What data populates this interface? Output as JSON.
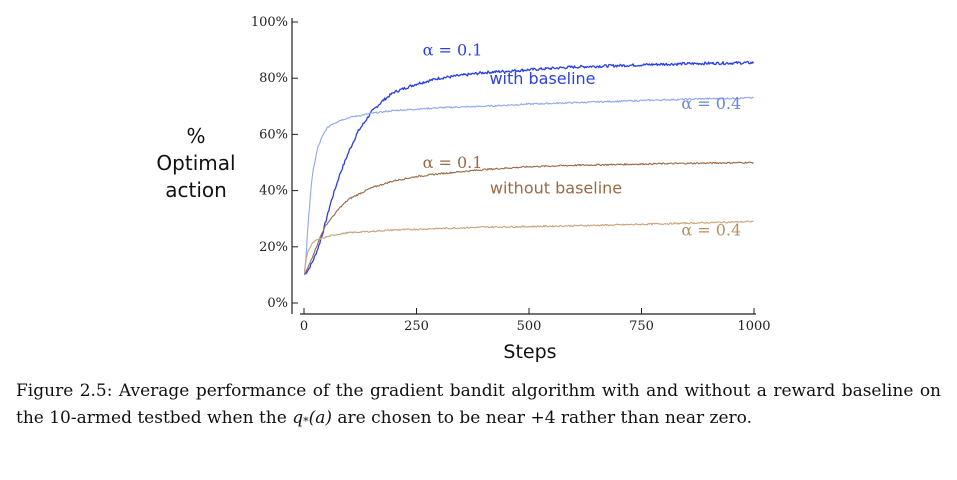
{
  "chart_data": {
    "type": "line",
    "title": "",
    "xlabel": "Steps",
    "ylabel": [
      "%",
      "Optimal",
      "action"
    ],
    "xlim": [
      0,
      1000
    ],
    "ylim": [
      0,
      100
    ],
    "xticks": [
      0,
      250,
      500,
      750,
      1000
    ],
    "yticks": [
      0,
      20,
      40,
      60,
      80,
      100
    ],
    "xtick_labels": [
      "0",
      "250",
      "500",
      "750",
      "1000"
    ],
    "ytick_labels": [
      "0%",
      "20%",
      "40%",
      "60%",
      "80%",
      "100%"
    ],
    "grid": false,
    "series": [
      {
        "label": "α = 0.1",
        "group": "with baseline",
        "color": "#2a3fe6",
        "x": [
          1,
          10,
          20,
          30,
          40,
          50,
          60,
          80,
          100,
          120,
          150,
          175,
          200,
          250,
          300,
          400,
          500,
          600,
          700,
          800,
          900,
          1000
        ],
        "y": [
          10,
          12,
          15,
          19,
          24,
          30,
          36,
          46,
          54,
          61,
          68,
          72,
          75,
          78,
          80,
          82,
          83,
          84,
          84.5,
          85,
          85.3,
          85.5
        ]
      },
      {
        "label": "α = 0.4",
        "group": "with baseline",
        "color": "#8fa8ee",
        "x": [
          1,
          5,
          10,
          15,
          20,
          30,
          40,
          50,
          60,
          80,
          100,
          150,
          200,
          250,
          300,
          400,
          500,
          600,
          700,
          800,
          900,
          1000
        ],
        "y": [
          10,
          18,
          30,
          40,
          47,
          55,
          59,
          62,
          63.5,
          65,
          66,
          67.5,
          68.5,
          69,
          69.5,
          70,
          70.8,
          71.3,
          71.8,
          72.3,
          72.7,
          73
        ]
      },
      {
        "label": "α = 0.1",
        "group": "without baseline",
        "color": "#9a6a46",
        "x": [
          1,
          10,
          20,
          30,
          40,
          50,
          60,
          80,
          100,
          125,
          150,
          200,
          250,
          300,
          400,
          500,
          600,
          700,
          800,
          900,
          1000
        ],
        "y": [
          10,
          13,
          17,
          21,
          25,
          28,
          30,
          34,
          37,
          39,
          41,
          43.5,
          45,
          46,
          47.5,
          48.5,
          49,
          49.3,
          49.6,
          49.8,
          50
        ]
      },
      {
        "label": "α = 0.4",
        "group": "without baseline",
        "color": "#c8a47a",
        "x": [
          1,
          5,
          10,
          20,
          30,
          50,
          75,
          100,
          200,
          300,
          400,
          500,
          600,
          700,
          800,
          900,
          1000
        ],
        "y": [
          11,
          16,
          19,
          21.5,
          22.5,
          23.5,
          24.5,
          25,
          26,
          26.5,
          27,
          27.2,
          27.5,
          27.8,
          28.2,
          28.6,
          29
        ]
      }
    ],
    "annotations": [
      {
        "text": "α = 0.1",
        "color": "#2a3fe6",
        "x": 330,
        "y": 88
      },
      {
        "text": "with baseline",
        "color": "#2a3fe6",
        "x": 530,
        "y": 78
      },
      {
        "text": "α = 0.4",
        "color": "#6a86e0",
        "x": 905,
        "y": 69
      },
      {
        "text": "α = 0.1",
        "color": "#9a6a46",
        "x": 330,
        "y": 48
      },
      {
        "text": "without baseline",
        "color": "#9a6a46",
        "x": 560,
        "y": 39
      },
      {
        "text": "α = 0.4",
        "color": "#b78e62",
        "x": 905,
        "y": 24
      }
    ]
  },
  "caption": {
    "label": "Figure 2.5:",
    "text_before": " Average performance of the gradient bandit algorithm with and without a reward baseline on the 10-armed testbed when the ",
    "math_q": "q",
    "math_sub": "*",
    "math_arg": "(a)",
    "text_after": " are chosen to be near +4 rather than near zero."
  }
}
